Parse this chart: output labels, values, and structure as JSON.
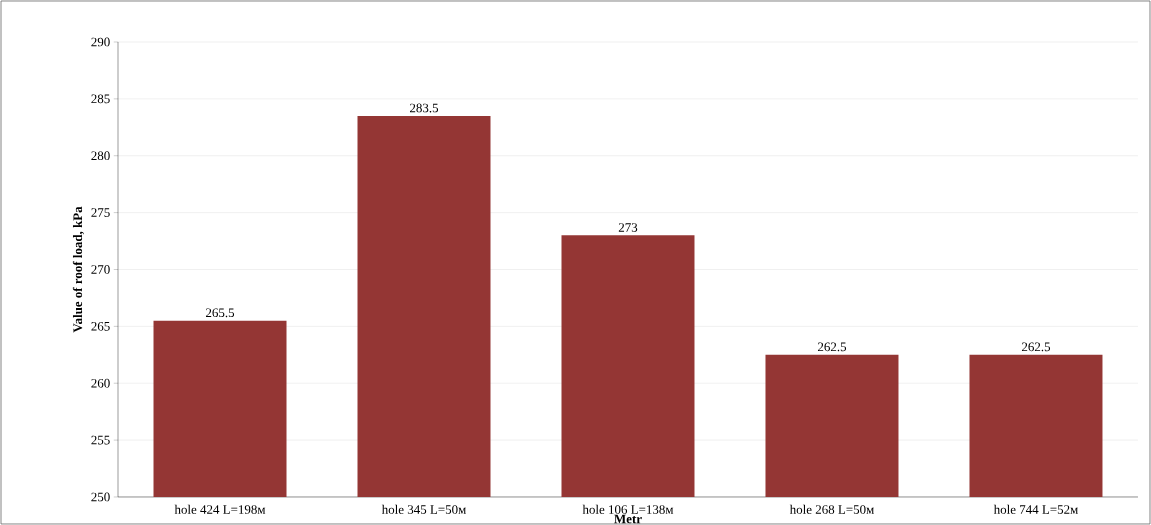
{
  "chart_data": {
    "type": "bar",
    "xlabel": "Metr",
    "ylabel": "Value of roof load, kPa",
    "categories": [
      "hole 424 L=198м",
      "hole 345 L=50м",
      "hole 106 L=138м",
      "hole 268 L=50м",
      "hole 744 L=52м"
    ],
    "values": [
      265.5,
      283.5,
      273,
      262.5,
      262.5
    ],
    "color": "#943634",
    "ylim": [
      250,
      290
    ],
    "yticks": [
      250,
      255,
      260,
      265,
      270,
      275,
      280,
      285,
      290
    ],
    "grid": "y",
    "data_labels": true
  }
}
